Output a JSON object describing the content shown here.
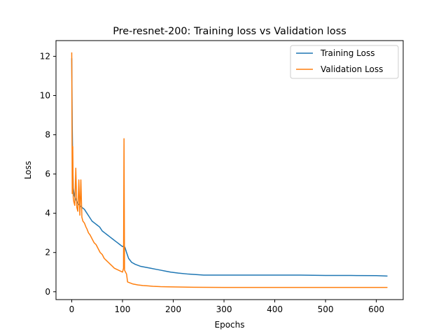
{
  "chart_data": {
    "type": "line",
    "title": "Pre-resnet-200: Training loss vs Validation loss",
    "xlabel": "Epochs",
    "ylabel": "Loss",
    "xlim": [
      -31,
      653
    ],
    "ylim": [
      -0.4,
      12.8
    ],
    "xticks": [
      0,
      100,
      200,
      300,
      400,
      500,
      600
    ],
    "yticks": [
      0,
      2,
      4,
      6,
      8,
      10,
      12
    ],
    "legend_position": "upper-right",
    "series": [
      {
        "name": "Training Loss",
        "color": "#1f77b4",
        "x": [
          0,
          1,
          2,
          3,
          5,
          8,
          12,
          16,
          20,
          25,
          30,
          35,
          40,
          45,
          50,
          55,
          60,
          65,
          70,
          75,
          80,
          85,
          90,
          95,
          100,
          103,
          105,
          108,
          112,
          118,
          125,
          135,
          145,
          155,
          165,
          175,
          185,
          195,
          210,
          230,
          260,
          300,
          350,
          400,
          450,
          500,
          550,
          600,
          622
        ],
        "y": [
          11.9,
          8.5,
          6.5,
          5.3,
          4.9,
          4.7,
          4.5,
          4.4,
          4.3,
          4.2,
          4.0,
          3.8,
          3.6,
          3.5,
          3.4,
          3.3,
          3.1,
          3.0,
          2.9,
          2.8,
          2.7,
          2.6,
          2.5,
          2.4,
          2.3,
          2.35,
          2.25,
          2.0,
          1.7,
          1.5,
          1.4,
          1.3,
          1.25,
          1.2,
          1.15,
          1.1,
          1.05,
          1.0,
          0.95,
          0.9,
          0.85,
          0.85,
          0.85,
          0.85,
          0.85,
          0.83,
          0.83,
          0.82,
          0.8
        ]
      },
      {
        "name": "Validation Loss",
        "color": "#ff7f0e",
        "x": [
          0,
          1,
          2,
          3,
          4,
          5,
          6,
          8,
          10,
          12,
          14,
          16,
          18,
          20,
          22,
          25,
          28,
          30,
          33,
          36,
          40,
          44,
          48,
          52,
          56,
          60,
          64,
          68,
          72,
          76,
          80,
          84,
          88,
          92,
          96,
          100,
          102,
          103,
          104,
          106,
          108,
          110,
          115,
          120,
          130,
          140,
          150,
          160,
          175,
          190,
          210,
          240,
          300,
          400,
          500,
          600,
          622
        ],
        "y": [
          12.2,
          5.0,
          7.4,
          4.8,
          4.6,
          4.5,
          4.4,
          6.3,
          4.3,
          4.1,
          5.7,
          3.9,
          5.7,
          3.8,
          3.6,
          3.5,
          3.3,
          3.2,
          3.0,
          2.9,
          2.7,
          2.5,
          2.4,
          2.2,
          2.0,
          1.9,
          1.7,
          1.6,
          1.5,
          1.4,
          1.3,
          1.2,
          1.15,
          1.1,
          1.05,
          1.0,
          1.2,
          7.8,
          1.1,
          1.0,
          0.9,
          0.5,
          0.45,
          0.4,
          0.35,
          0.32,
          0.3,
          0.28,
          0.26,
          0.25,
          0.24,
          0.23,
          0.22,
          0.22,
          0.22,
          0.22,
          0.22
        ]
      }
    ]
  }
}
